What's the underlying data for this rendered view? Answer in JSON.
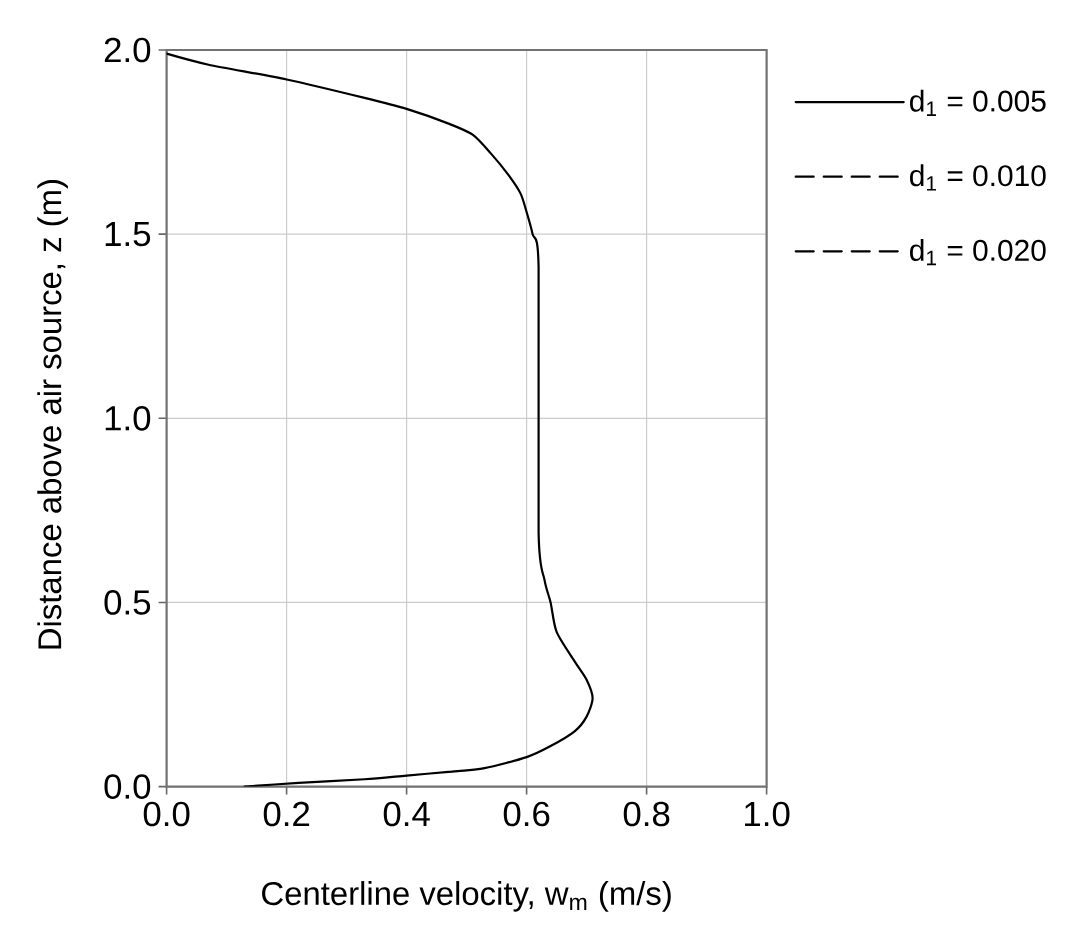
{
  "chart_data": {
    "type": "line",
    "xlabel": "Centerline velocity, w$_{m}$ (m/s)",
    "ylabel": "Distance above air source, z (m)",
    "x": [
      0.13,
      0.22,
      0.33,
      0.4,
      0.47,
      0.53,
      0.6,
      0.64,
      0.68,
      0.7,
      0.71,
      0.7,
      0.68,
      0.65,
      0.64,
      0.63,
      0.62,
      0.62,
      0.61,
      0.6,
      0.59,
      0.57,
      0.54,
      0.51,
      0.47,
      0.4,
      0.33,
      0.2,
      0.07,
      0
    ],
    "series": [
      {
        "name": "d$_{1}$ = 0.005",
        "color": "#000000",
        "line_style": "solid",
        "values": [
          0,
          0.01,
          0.02,
          0.03,
          0.04,
          0.05,
          0.08,
          0.11,
          0.15,
          0.19,
          0.24,
          0.29,
          0.34,
          0.42,
          0.5,
          0.56,
          0.69,
          1.41,
          1.5,
          1.56,
          1.61,
          1.66,
          1.72,
          1.77,
          1.8,
          1.84,
          1.87,
          1.92,
          1.96,
          1.99
        ]
      },
      {
        "name": "d$_{1}$ = 0.010",
        "color": "#000000",
        "line_style": "dashed",
        "values": [
          null,
          null,
          null,
          null,
          null,
          null,
          null,
          null,
          null,
          null,
          null,
          null,
          null,
          null,
          null,
          null,
          null,
          null,
          null,
          null,
          null,
          null,
          null,
          null,
          null,
          null,
          null,
          null,
          null,
          null
        ]
      },
      {
        "name": "d$_{1}$ = 0.020",
        "color": "#000000",
        "line_style": "dashed",
        "values": [
          null,
          null,
          null,
          null,
          null,
          null,
          null,
          null,
          null,
          null,
          null,
          null,
          null,
          null,
          null,
          null,
          null,
          null,
          null,
          null,
          null,
          null,
          null,
          null,
          null,
          null,
          null,
          null,
          null,
          null
        ]
      }
    ],
    "xlim": [
      0,
      1
    ],
    "ylim": [
      0,
      2
    ],
    "xticks": [
      {
        "value": 0,
        "label": "0.0"
      },
      0.2,
      0.4,
      0.6,
      0.8,
      {
        "value": 1,
        "label": "1.0"
      }
    ],
    "yticks": [
      {
        "value": 0,
        "label": "0.0"
      },
      0.5,
      {
        "value": 1,
        "label": "1.0"
      },
      1.5,
      {
        "value": 2,
        "label": "2.0"
      }
    ],
    "grid": true,
    "legend": "right"
  }
}
